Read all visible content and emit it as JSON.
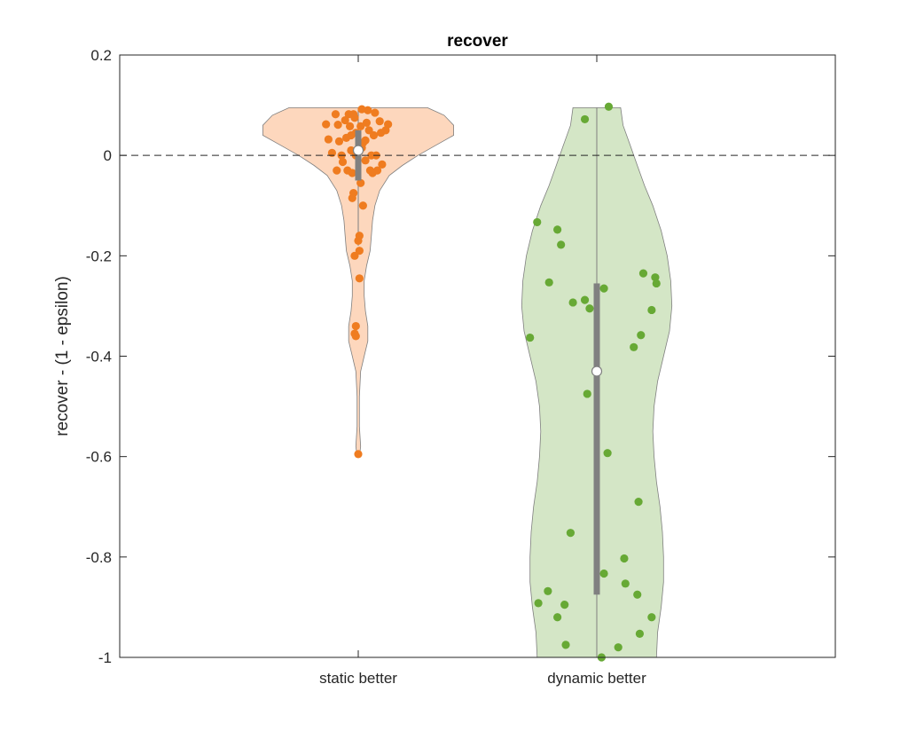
{
  "chart_data": {
    "type": "violin",
    "title": "recover",
    "xlabel": "",
    "ylabel": "recover - (1 - epsilon)",
    "ylim": [
      -1,
      0.2
    ],
    "yticks": [
      -1,
      -0.8,
      -0.6,
      -0.4,
      -0.2,
      0,
      0.2
    ],
    "ytick_labels": [
      "-1",
      "-0.8",
      "-0.6",
      "-0.4",
      "-0.2",
      "0",
      "0.2"
    ],
    "categories": [
      "static better",
      "dynamic better"
    ],
    "reference_line": {
      "y": 0,
      "style": "dashed"
    },
    "grid": false,
    "series": [
      {
        "category": "static better",
        "fill_color": "#fdd7bd",
        "point_color": "#ef7c20",
        "median": 0.01,
        "q1": -0.05,
        "q3": 0.05,
        "whisker_low": -0.18,
        "whisker_high": 0.095,
        "density_profile": [
          {
            "y": 0.095,
            "w": 0.58
          },
          {
            "y": 0.08,
            "w": 0.72
          },
          {
            "y": 0.06,
            "w": 0.8
          },
          {
            "y": 0.04,
            "w": 0.8
          },
          {
            "y": 0.02,
            "w": 0.65
          },
          {
            "y": 0.0,
            "w": 0.5
          },
          {
            "y": -0.02,
            "w": 0.37
          },
          {
            "y": -0.04,
            "w": 0.26
          },
          {
            "y": -0.07,
            "w": 0.18
          },
          {
            "y": -0.1,
            "w": 0.14
          },
          {
            "y": -0.13,
            "w": 0.12
          },
          {
            "y": -0.16,
            "w": 0.11
          },
          {
            "y": -0.19,
            "w": 0.1
          },
          {
            "y": -0.22,
            "w": 0.07
          },
          {
            "y": -0.25,
            "w": 0.05
          },
          {
            "y": -0.28,
            "w": 0.05
          },
          {
            "y": -0.31,
            "w": 0.06
          },
          {
            "y": -0.34,
            "w": 0.08
          },
          {
            "y": -0.37,
            "w": 0.08
          },
          {
            "y": -0.4,
            "w": 0.05
          },
          {
            "y": -0.43,
            "w": 0.02
          },
          {
            "y": -0.48,
            "w": 0.01
          },
          {
            "y": -0.54,
            "w": 0.01
          },
          {
            "y": -0.58,
            "w": 0.02
          },
          {
            "y": -0.6,
            "w": 0.01
          }
        ],
        "points": [
          {
            "x": -0.27,
            "y": 0.062
          },
          {
            "x": -0.25,
            "y": 0.032
          },
          {
            "x": -0.22,
            "y": 0.005
          },
          {
            "x": -0.19,
            "y": 0.082
          },
          {
            "x": -0.17,
            "y": 0.061
          },
          {
            "x": -0.16,
            "y": 0.028
          },
          {
            "x": -0.14,
            "y": 0.0
          },
          {
            "x": -0.13,
            "y": -0.013
          },
          {
            "x": -0.11,
            "y": 0.07
          },
          {
            "x": -0.1,
            "y": 0.035
          },
          {
            "x": -0.08,
            "y": 0.082
          },
          {
            "x": -0.07,
            "y": 0.058
          },
          {
            "x": -0.06,
            "y": 0.01
          },
          {
            "x": -0.05,
            "y": -0.035
          },
          {
            "x": -0.03,
            "y": 0.075
          },
          {
            "x": -0.02,
            "y": 0.045
          },
          {
            "x": 0.0,
            "y": 0.012
          },
          {
            "x": 0.02,
            "y": 0.058
          },
          {
            "x": 0.03,
            "y": 0.092
          },
          {
            "x": 0.04,
            "y": 0.025
          },
          {
            "x": 0.06,
            "y": -0.01
          },
          {
            "x": 0.07,
            "y": 0.065
          },
          {
            "x": 0.08,
            "y": 0.09
          },
          {
            "x": 0.09,
            "y": 0.05
          },
          {
            "x": 0.1,
            "y": -0.03
          },
          {
            "x": 0.11,
            "y": 0.0
          },
          {
            "x": 0.13,
            "y": 0.04
          },
          {
            "x": 0.14,
            "y": 0.085
          },
          {
            "x": 0.15,
            "y": 0.0
          },
          {
            "x": 0.16,
            "y": -0.03
          },
          {
            "x": 0.18,
            "y": 0.068
          },
          {
            "x": 0.19,
            "y": 0.045
          },
          {
            "x": 0.2,
            "y": -0.018
          },
          {
            "x": 0.23,
            "y": 0.05
          },
          {
            "x": 0.25,
            "y": 0.062
          },
          {
            "x": -0.18,
            "y": -0.03
          },
          {
            "x": -0.09,
            "y": -0.03
          },
          {
            "x": 0.06,
            "y": 0.03
          },
          {
            "x": -0.04,
            "y": 0.082
          },
          {
            "x": 0.12,
            "y": -0.035
          },
          {
            "x": -0.02,
            "y": 0.0
          },
          {
            "x": 0.02,
            "y": -0.055
          },
          {
            "x": -0.04,
            "y": -0.075
          },
          {
            "x": -0.05,
            "y": -0.085
          },
          {
            "x": 0.04,
            "y": -0.1
          },
          {
            "x": 0.01,
            "y": -0.16
          },
          {
            "x": 0.0,
            "y": -0.17
          },
          {
            "x": 0.01,
            "y": -0.19
          },
          {
            "x": -0.03,
            "y": -0.2
          },
          {
            "x": 0.01,
            "y": -0.245
          },
          {
            "x": -0.02,
            "y": -0.34
          },
          {
            "x": -0.02,
            "y": -0.36
          },
          {
            "x": -0.03,
            "y": -0.355
          },
          {
            "x": 0.0,
            "y": -0.595
          },
          {
            "x": 0.03,
            "y": 0.015
          },
          {
            "x": -0.06,
            "y": 0.04
          }
        ]
      },
      {
        "category": "dynamic better",
        "fill_color": "#d4e6c6",
        "point_color": "#67a935",
        "median": -0.43,
        "q1": -0.875,
        "q3": -0.255,
        "whisker_low": -1.0,
        "whisker_high": 0.095,
        "density_profile": [
          {
            "y": 0.095,
            "w": 0.2
          },
          {
            "y": 0.06,
            "w": 0.22
          },
          {
            "y": 0.02,
            "w": 0.28
          },
          {
            "y": -0.02,
            "w": 0.34
          },
          {
            "y": -0.06,
            "w": 0.4
          },
          {
            "y": -0.1,
            "w": 0.47
          },
          {
            "y": -0.15,
            "w": 0.54
          },
          {
            "y": -0.2,
            "w": 0.59
          },
          {
            "y": -0.25,
            "w": 0.62
          },
          {
            "y": -0.3,
            "w": 0.63
          },
          {
            "y": -0.35,
            "w": 0.61
          },
          {
            "y": -0.4,
            "w": 0.56
          },
          {
            "y": -0.45,
            "w": 0.51
          },
          {
            "y": -0.5,
            "w": 0.48
          },
          {
            "y": -0.55,
            "w": 0.47
          },
          {
            "y": -0.6,
            "w": 0.48
          },
          {
            "y": -0.65,
            "w": 0.5
          },
          {
            "y": -0.7,
            "w": 0.53
          },
          {
            "y": -0.75,
            "w": 0.55
          },
          {
            "y": -0.8,
            "w": 0.56
          },
          {
            "y": -0.85,
            "w": 0.56
          },
          {
            "y": -0.9,
            "w": 0.54
          },
          {
            "y": -0.95,
            "w": 0.51
          },
          {
            "y": -1.0,
            "w": 0.5
          }
        ],
        "points": [
          {
            "x": -0.1,
            "y": 0.072
          },
          {
            "x": 0.1,
            "y": 0.097
          },
          {
            "x": -0.5,
            "y": -0.133
          },
          {
            "x": -0.33,
            "y": -0.148
          },
          {
            "x": -0.3,
            "y": -0.178
          },
          {
            "x": -0.4,
            "y": -0.253
          },
          {
            "x": -0.06,
            "y": -0.305
          },
          {
            "x": -0.2,
            "y": -0.293
          },
          {
            "x": -0.1,
            "y": -0.288
          },
          {
            "x": 0.06,
            "y": -0.265
          },
          {
            "x": -0.56,
            "y": -0.363
          },
          {
            "x": 0.39,
            "y": -0.235
          },
          {
            "x": 0.49,
            "y": -0.243
          },
          {
            "x": 0.5,
            "y": -0.255
          },
          {
            "x": 0.46,
            "y": -0.308
          },
          {
            "x": 0.37,
            "y": -0.358
          },
          {
            "x": 0.31,
            "y": -0.382
          },
          {
            "x": -0.08,
            "y": -0.475
          },
          {
            "x": 0.09,
            "y": -0.593
          },
          {
            "x": 0.35,
            "y": -0.69
          },
          {
            "x": -0.22,
            "y": -0.752
          },
          {
            "x": 0.23,
            "y": -0.803
          },
          {
            "x": 0.06,
            "y": -0.833
          },
          {
            "x": 0.24,
            "y": -0.853
          },
          {
            "x": -0.41,
            "y": -0.868
          },
          {
            "x": 0.34,
            "y": -0.875
          },
          {
            "x": -0.49,
            "y": -0.892
          },
          {
            "x": -0.27,
            "y": -0.895
          },
          {
            "x": -0.33,
            "y": -0.92
          },
          {
            "x": 0.46,
            "y": -0.92
          },
          {
            "x": 0.36,
            "y": -0.953
          },
          {
            "x": -0.26,
            "y": -0.975
          },
          {
            "x": 0.18,
            "y": -0.98
          },
          {
            "x": 0.04,
            "y": -1.0
          }
        ]
      }
    ]
  }
}
